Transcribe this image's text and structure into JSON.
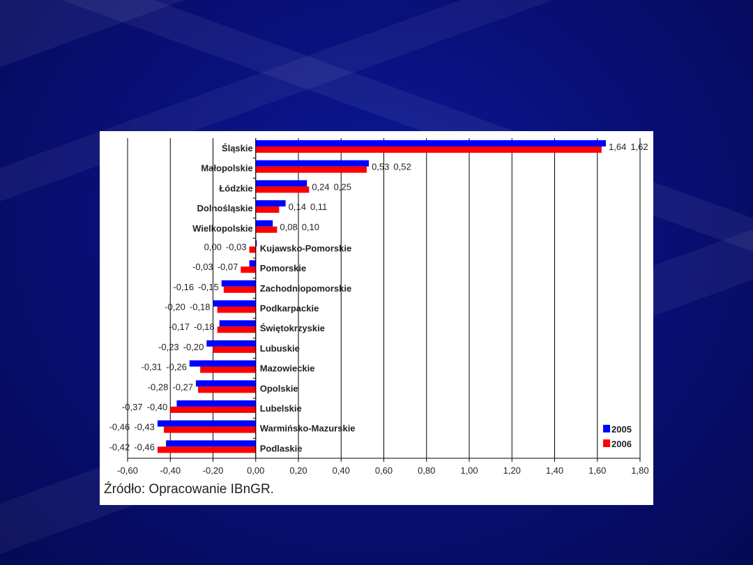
{
  "chart_data": {
    "type": "bar",
    "orientation": "horizontal",
    "categories": [
      "Śląskie",
      "Małopolskie",
      "Łódzkie",
      "Dolnośląskie",
      "Wielkopolskie",
      "Kujawsko-Pomorskie",
      "Pomorskie",
      "Zachodniopomorskie",
      "Podkarpackie",
      "Świętokrzyskie",
      "Lubuskie",
      "Mazowieckie",
      "Opolskie",
      "Lubelskie",
      "Warmińsko-Mazurskie",
      "Podlaskie"
    ],
    "series": [
      {
        "name": "2005",
        "color": "#0000ff",
        "values": [
          1.64,
          0.53,
          0.24,
          0.14,
          0.08,
          0.0,
          -0.03,
          -0.16,
          -0.2,
          -0.17,
          -0.23,
          -0.31,
          -0.28,
          -0.37,
          -0.46,
          -0.42
        ]
      },
      {
        "name": "2006",
        "color": "#ff0000",
        "values": [
          1.62,
          0.52,
          0.25,
          0.11,
          0.1,
          -0.03,
          -0.07,
          -0.15,
          -0.18,
          -0.18,
          -0.2,
          -0.26,
          -0.27,
          -0.4,
          -0.43,
          -0.46
        ]
      }
    ],
    "xlim": [
      -0.6,
      1.8
    ],
    "xticks": [
      "-0,60",
      "-0,40",
      "-0,20",
      "0,00",
      "0,20",
      "0,40",
      "0,60",
      "0,80",
      "1,00",
      "1,20",
      "1,40",
      "1,60",
      "1,80"
    ],
    "grid": "vertical",
    "legend": "bottom-right",
    "xlabel": "",
    "ylabel": "",
    "title": ""
  },
  "source": "Źródło:  Opracowanie IBnGR."
}
